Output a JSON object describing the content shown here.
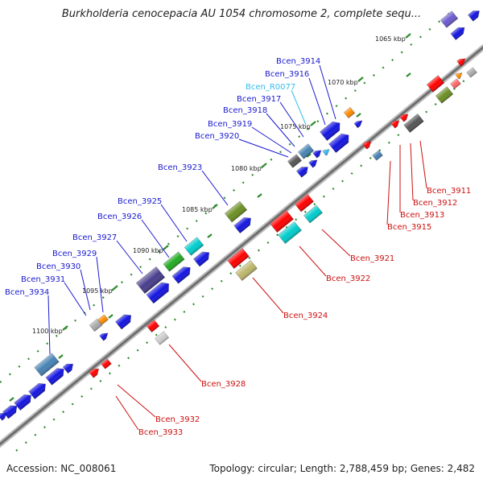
{
  "title": "Burkholderia cenocepacia AU 1054 chromosome 2, complete sequ...",
  "footer": {
    "accession": "Accession: NC_008061",
    "topology": "Topology: circular; Length: 2,788,459 bp; Genes: 2,482"
  },
  "colors": {
    "background": "#ffffff",
    "backbone": "#8c8c8c",
    "forward_label": "#1a1ad0",
    "reverse_label": "#cc1010",
    "rna_label": "#33bbee",
    "tick_mark": "#2e8b2e"
  },
  "position_ticks": [
    "1065 kbp",
    "1070 kbp",
    "1075 kbp",
    "1080 kbp",
    "1085 kbp",
    "1090 kbp",
    "1095 kbp",
    "1100 kbp"
  ],
  "forward_labels": [
    "Bcen_3914",
    "Bcen_3916",
    "Bcen_R0077",
    "Bcen_3917",
    "Bcen_3918",
    "Bcen_3919",
    "Bcen_3920",
    "Bcen_3923",
    "Bcen_3925",
    "Bcen_3926",
    "Bcen_3927",
    "Bcen_3929",
    "Bcen_3930",
    "Bcen_3931",
    "Bcen_3934"
  ],
  "reverse_labels": [
    "Bcen_3911",
    "Bcen_3912",
    "Bcen_3913",
    "Bcen_3915",
    "Bcen_3921",
    "Bcen_3922",
    "Bcen_3924",
    "Bcen_3928",
    "Bcen_3932",
    "Bcen_3933"
  ]
}
